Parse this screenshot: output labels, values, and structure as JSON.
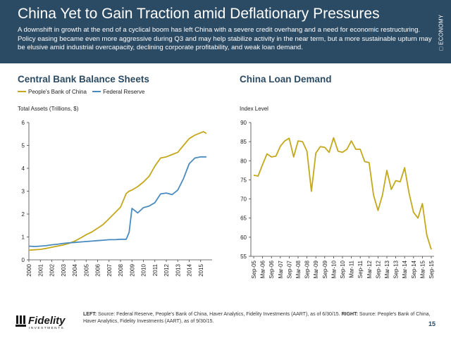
{
  "header": {
    "title": "China Yet to Gain Traction amid Deflationary Pressures",
    "subtitle": "A downshift in growth at the end of a cyclical boom has left China with a severe credit overhang and a need for economic restructuring. Policy easing became even more aggressive during Q3 and may help stabilize activity in the near term, but a more sustainable upturn may be elusive amid industrial overcapacity, declining corporate profitability, and weak loan demand.",
    "side_tag": "ECONOMY"
  },
  "colors": {
    "header_bg": "#2b4a63",
    "pboc": "#c4a81b",
    "fed": "#4a8bbf",
    "loan": "#c4a81b",
    "title_text": "#2b4a63"
  },
  "footer": {
    "logo_text": "Fidelity",
    "logo_subtext": "INVESTMENTS",
    "source_left_label": "LEFT:",
    "source_left": "Source: Federal Reserve, People's Bank of China, Haver Analytics, Fidelity Investments (AART), as of 6/30/15.",
    "source_right_label": "RIGHT:",
    "source_right": "Source: People's Bank of China, Haver Analytics, Fidelity Investments (AART), as of 9/30/15.",
    "page_number": "15"
  },
  "chart_data": [
    {
      "type": "line",
      "title": "Central Bank Balance Sheets",
      "ylabel": "Total Assets (Trillions, $)",
      "xlabel": "",
      "ylim": [
        0,
        6
      ],
      "yticks": [
        0,
        1,
        2,
        3,
        4,
        5,
        6
      ],
      "xlim": [
        2000,
        2016
      ],
      "xticks": [
        "2000",
        "2001",
        "2002",
        "2003",
        "2004",
        "2005",
        "2006",
        "2007",
        "2008",
        "2009",
        "2010",
        "2011",
        "2012",
        "2013",
        "2014",
        "2015"
      ],
      "grid": false,
      "legend_position": "top-left",
      "series": [
        {
          "name": "People's Bank of China",
          "color": "#c4a81b",
          "x": [
            2000,
            2000.5,
            2001,
            2001.5,
            2002,
            2002.5,
            2003,
            2003.5,
            2004,
            2004.5,
            2005,
            2005.5,
            2006,
            2006.5,
            2007,
            2007.5,
            2008,
            2008.25,
            2008.5,
            2008.75,
            2009,
            2009.5,
            2010,
            2010.5,
            2011,
            2011.5,
            2012,
            2012.5,
            2013,
            2013.5,
            2014,
            2014.5,
            2015,
            2015.25,
            2015.5
          ],
          "values": [
            0.42,
            0.44,
            0.46,
            0.5,
            0.55,
            0.6,
            0.65,
            0.72,
            0.82,
            0.95,
            1.1,
            1.22,
            1.38,
            1.55,
            1.8,
            2.05,
            2.3,
            2.6,
            2.9,
            3.0,
            3.05,
            3.2,
            3.4,
            3.65,
            4.1,
            4.45,
            4.5,
            4.6,
            4.7,
            5.0,
            5.3,
            5.45,
            5.55,
            5.6,
            5.52
          ]
        },
        {
          "name": "Federal Reserve",
          "color": "#4a8bbf",
          "x": [
            2000,
            2000.5,
            2001,
            2001.5,
            2002,
            2002.5,
            2003,
            2003.5,
            2004,
            2004.5,
            2005,
            2005.5,
            2006,
            2006.5,
            2007,
            2007.5,
            2008,
            2008.5,
            2008.75,
            2009,
            2009.5,
            2010,
            2010.5,
            2011,
            2011.5,
            2012,
            2012.5,
            2013,
            2013.5,
            2014,
            2014.5,
            2015,
            2015.5
          ],
          "values": [
            0.6,
            0.58,
            0.6,
            0.62,
            0.66,
            0.68,
            0.72,
            0.74,
            0.76,
            0.78,
            0.8,
            0.82,
            0.84,
            0.86,
            0.88,
            0.88,
            0.9,
            0.9,
            1.2,
            2.25,
            2.05,
            2.28,
            2.35,
            2.5,
            2.88,
            2.92,
            2.85,
            3.05,
            3.55,
            4.2,
            4.45,
            4.5,
            4.5
          ]
        }
      ]
    },
    {
      "type": "line",
      "title": "China Loan Demand",
      "ylabel": "Index Level",
      "xlabel": "",
      "ylim": [
        55,
        90
      ],
      "yticks": [
        55,
        60,
        65,
        70,
        75,
        80,
        85,
        90
      ],
      "xticks": [
        "Sep-05",
        "Mar-06",
        "Sep-06",
        "Mar-07",
        "Sep-07",
        "Mar-08",
        "Sep-08",
        "Mar-09",
        "Sep-09",
        "Mar-10",
        "Sep-10",
        "Mar-11",
        "Sep-11",
        "Mar-12",
        "Sep-12",
        "Mar-13",
        "Sep-13",
        "Mar-14",
        "Sep-14",
        "Mar-15",
        "Sep-15"
      ],
      "grid": false,
      "categories": [
        "Sep-05",
        "Dec-05",
        "Mar-06",
        "Jun-06",
        "Sep-06",
        "Dec-06",
        "Mar-07",
        "Jun-07",
        "Sep-07",
        "Dec-07",
        "Mar-08",
        "Jun-08",
        "Sep-08",
        "Dec-08",
        "Mar-09",
        "Jun-09",
        "Sep-09",
        "Dec-09",
        "Mar-10",
        "Jun-10",
        "Sep-10",
        "Dec-10",
        "Mar-11",
        "Jun-11",
        "Sep-11",
        "Dec-11",
        "Mar-12",
        "Jun-12",
        "Sep-12",
        "Dec-12",
        "Mar-13",
        "Jun-13",
        "Sep-13",
        "Dec-13",
        "Mar-14",
        "Jun-14",
        "Sep-14",
        "Dec-14",
        "Mar-15",
        "Jun-15",
        "Sep-15"
      ],
      "series": [
        {
          "color": "#c4a81b",
          "values": [
            76.2,
            76.0,
            79.0,
            81.8,
            81.0,
            81.2,
            83.8,
            85.2,
            85.9,
            81.0,
            85.2,
            85.0,
            82.5,
            72.0,
            82.0,
            83.7,
            83.5,
            82.2,
            86.0,
            82.5,
            82.2,
            83.0,
            85.2,
            83.0,
            83.0,
            79.8,
            79.5,
            71.0,
            67.0,
            71.0,
            77.5,
            72.5,
            74.8,
            74.5,
            78.2,
            71.5,
            66.5,
            65.0,
            68.8,
            60.5,
            56.8
          ]
        }
      ]
    }
  ]
}
